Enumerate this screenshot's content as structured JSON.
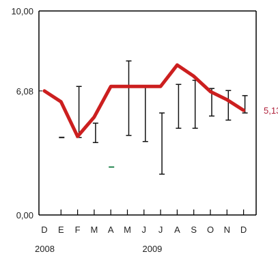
{
  "chart_data": {
    "type": "line",
    "x_categories": [
      "D",
      "E",
      "F",
      "M",
      "A",
      "M",
      "J",
      "J",
      "A",
      "S",
      "O",
      "N",
      "D"
    ],
    "year_labels": [
      {
        "text": "2008",
        "category_index": 0
      },
      {
        "text": "2009",
        "category_index": 6
      }
    ],
    "y_ticks": [
      {
        "value": 0,
        "label": "0,00"
      },
      {
        "value": 6.08,
        "label": "6,08"
      },
      {
        "value": 10,
        "label": "10,00"
      }
    ],
    "ylim": [
      0,
      10
    ],
    "grid": false,
    "series": [
      {
        "values": [
          6.08,
          5.55,
          3.85,
          4.8,
          6.3,
          6.3,
          6.3,
          6.3,
          7.35,
          6.8,
          6.05,
          5.65,
          5.13
        ],
        "color": "#cc1f1f",
        "last_value_label": "5,13"
      }
    ],
    "ranges": [
      {
        "index": 1,
        "low": 3.8,
        "high": 3.8
      },
      {
        "index": 2,
        "low": 3.8,
        "high": 6.3
      },
      {
        "index": 3,
        "low": 3.55,
        "high": 4.5
      },
      {
        "index": 4,
        "low": 2.35,
        "high": 2.35,
        "color": "#2e8b57"
      },
      {
        "index": 5,
        "low": 3.9,
        "high": 7.55
      },
      {
        "index": 6,
        "low": 3.6,
        "high": 6.3
      },
      {
        "index": 7,
        "low": 2.0,
        "high": 5.0
      },
      {
        "index": 8,
        "low": 4.25,
        "high": 6.4
      },
      {
        "index": 9,
        "low": 4.25,
        "high": 6.6
      },
      {
        "index": 10,
        "low": 4.85,
        "high": 6.2
      },
      {
        "index": 11,
        "low": 4.65,
        "high": 6.1
      },
      {
        "index": 12,
        "low": 5.0,
        "high": 5.85
      }
    ],
    "colors": {
      "axis": "#000000",
      "range": "#111111",
      "line": "#cc1f1f",
      "last_label": "#b0203a"
    }
  }
}
